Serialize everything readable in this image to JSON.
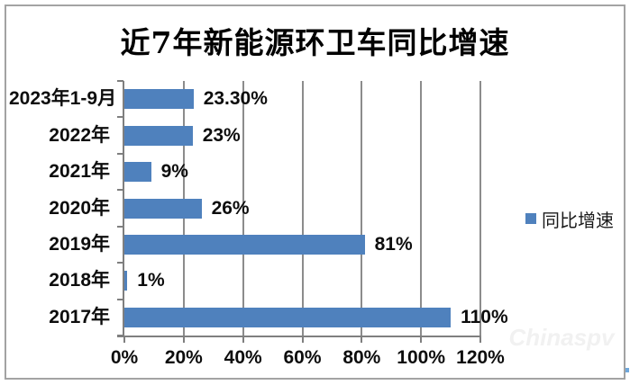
{
  "chart_data": {
    "type": "bar",
    "orientation": "horizontal",
    "title": "近7年新能源环卫车同比增速",
    "categories": [
      "2023年1-9月",
      "2022年",
      "2021年",
      "2020年",
      "2019年",
      "2018年",
      "2017年"
    ],
    "series": [
      {
        "name": "同比增速",
        "values": [
          23.3,
          23,
          9,
          26,
          81,
          1,
          110
        ]
      }
    ],
    "value_labels": [
      "23.30%",
      "23%",
      "9%",
      "26%",
      "81%",
      "1%",
      "110%"
    ],
    "x_ticks": [
      "0%",
      "20%",
      "40%",
      "60%",
      "80%",
      "100%",
      "120%"
    ],
    "xlim": [
      0,
      120
    ],
    "xlabel": "",
    "ylabel": "",
    "grid": true,
    "legend": {
      "label": "同比增速",
      "position": "right"
    },
    "colors": {
      "bar": "#4f81bd",
      "gridline": "#8c8c8c",
      "axis": "#7f7f7f",
      "legend_swatch": "#4f81bd"
    }
  },
  "watermark": {
    "text": "Chinaspv"
  },
  "frame": {
    "border_color": "#a3a3a3"
  }
}
